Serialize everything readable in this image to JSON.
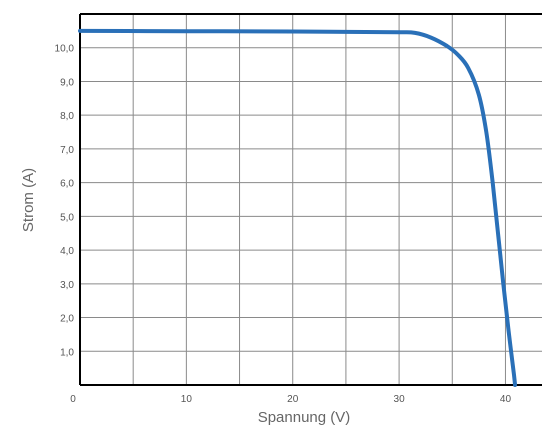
{
  "chart_data": {
    "type": "line",
    "title": "",
    "xlabel": "Spannung (V)",
    "ylabel": "Strom (A)",
    "xlim": [
      0,
      44
    ],
    "ylim": [
      0,
      11
    ],
    "grid": true,
    "x_ticks": [
      {
        "value": 0,
        "label": "0"
      },
      {
        "value": 10,
        "label": "10"
      },
      {
        "value": 20,
        "label": "20"
      },
      {
        "value": 30,
        "label": "30"
      },
      {
        "value": 40,
        "label": "40"
      }
    ],
    "y_ticks": [
      {
        "value": 1,
        "label": "1,0"
      },
      {
        "value": 2,
        "label": "2,0"
      },
      {
        "value": 3,
        "label": "3,0"
      },
      {
        "value": 4,
        "label": "4,0"
      },
      {
        "value": 5,
        "label": "5,0"
      },
      {
        "value": 6,
        "label": "6,0"
      },
      {
        "value": 7,
        "label": "7,0"
      },
      {
        "value": 8,
        "label": "8,0"
      },
      {
        "value": 9,
        "label": "9,0"
      },
      {
        "value": 10,
        "label": "10,0"
      }
    ],
    "series": [
      {
        "color": "#2a70b8",
        "points": [
          [
            0,
            10.5
          ],
          [
            10,
            10.49
          ],
          [
            20,
            10.48
          ],
          [
            25,
            10.47
          ],
          [
            30,
            10.46
          ],
          [
            31.5,
            10.44
          ],
          [
            33,
            10.3
          ],
          [
            34.5,
            10.05
          ],
          [
            35.5,
            9.8
          ],
          [
            36.5,
            9.4
          ],
          [
            37.5,
            8.6
          ],
          [
            38.2,
            7.5
          ],
          [
            38.8,
            6.0
          ],
          [
            39.3,
            4.5
          ],
          [
            39.8,
            3.0
          ],
          [
            40.3,
            1.6
          ],
          [
            40.8,
            0.3
          ],
          [
            40.9,
            0
          ]
        ]
      }
    ]
  }
}
